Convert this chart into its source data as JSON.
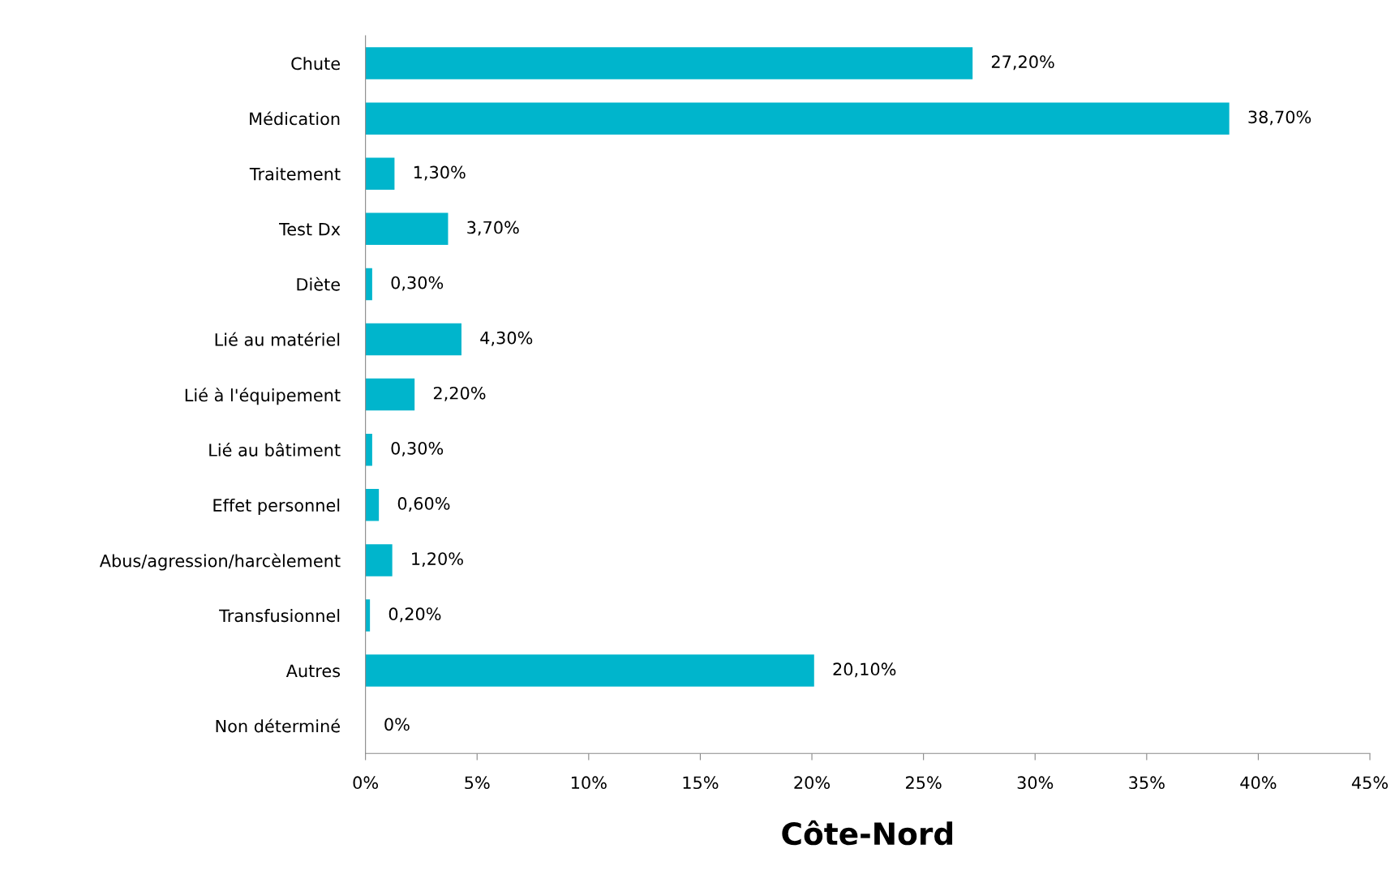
{
  "chart_data": {
    "type": "bar",
    "orientation": "horizontal",
    "xlabel": "Côte-Nord",
    "categories": [
      "Chute",
      "Médication",
      "Traitement",
      "Test Dx",
      "Diète",
      "Lié au matériel",
      "Lié à l'équipement",
      "Lié au bâtiment",
      "Effet personnel",
      "Abus/agression/harcèlement",
      "Transfusionnel",
      "Autres",
      "Non déterminé"
    ],
    "values": [
      27.2,
      38.7,
      1.3,
      3.7,
      0.3,
      4.3,
      2.2,
      0.3,
      0.6,
      1.2,
      0.2,
      20.1,
      0
    ],
    "value_labels": [
      "27,20%",
      "38,70%",
      "1,30%",
      "3,70%",
      "0,30%",
      "4,30%",
      "2,20%",
      "0,30%",
      "0,60%",
      "1,20%",
      "0,20%",
      "20,10%",
      "0%"
    ],
    "color": "#00b5cc",
    "xlim": [
      0,
      45
    ],
    "xticks": [
      {
        "value": 0,
        "label": "0%"
      },
      {
        "value": 5,
        "label": "5%"
      },
      {
        "value": 10,
        "label": "10%"
      },
      {
        "value": 15,
        "label": "15%"
      },
      {
        "value": 20,
        "label": "20%"
      },
      {
        "value": 25,
        "label": "25%"
      },
      {
        "value": 30,
        "label": "30%"
      },
      {
        "value": 35,
        "label": "35%"
      },
      {
        "value": 40,
        "label": "40%"
      },
      {
        "value": 45,
        "label": "45%"
      }
    ],
    "grid": false,
    "legend": false
  }
}
